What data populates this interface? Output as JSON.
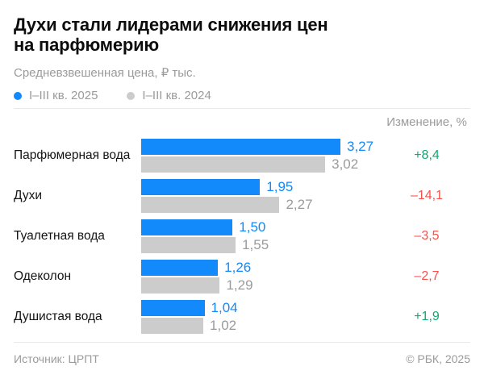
{
  "chart_data": {
    "type": "bar",
    "orientation": "horizontal",
    "title": "Духи стали лидерами снижения цен на парфюмерию",
    "title_lines": [
      "Духи стали лидерами снижения цен",
      "на парфюмерию"
    ],
    "subtitle": "Средневзвешенная цена, ₽ тыс.",
    "legend_position": "top",
    "grid": false,
    "xlim": [
      0,
      3.27
    ],
    "categories": [
      "Парфюмерная вода",
      "Духи",
      "Туалетная вода",
      "Одеколон",
      "Душистая вода"
    ],
    "series": [
      {
        "name": "I–III кв. 2025",
        "color": "#128afb",
        "values": [
          3.27,
          1.95,
          1.5,
          1.26,
          1.04
        ],
        "labels": [
          "3,27",
          "1,95",
          "1,50",
          "1,26",
          "1,04"
        ]
      },
      {
        "name": "I–III кв. 2024",
        "color": "#cccccc",
        "values": [
          3.02,
          2.27,
          1.55,
          1.29,
          1.02
        ],
        "labels": [
          "3,02",
          "2,27",
          "1,55",
          "1,29",
          "1,02"
        ]
      }
    ],
    "change_header": "Изменение, %",
    "changes": [
      {
        "label": "+8,4",
        "direction": "up"
      },
      {
        "label": "–14,1",
        "direction": "down"
      },
      {
        "label": "–3,5",
        "direction": "down"
      },
      {
        "label": "–2,7",
        "direction": "down"
      },
      {
        "label": "+1,9",
        "direction": "up"
      }
    ]
  },
  "footer": {
    "source": "Источник: ЦРПТ",
    "copyright": "© РБК, 2025"
  },
  "colors": {
    "accent_blue": "#128afb",
    "bar_gray": "#cccccc",
    "muted_text": "#9b9b9b",
    "positive_green": "#10a96f",
    "negative_red": "#f8514b",
    "divider": "#e9e9e9"
  }
}
